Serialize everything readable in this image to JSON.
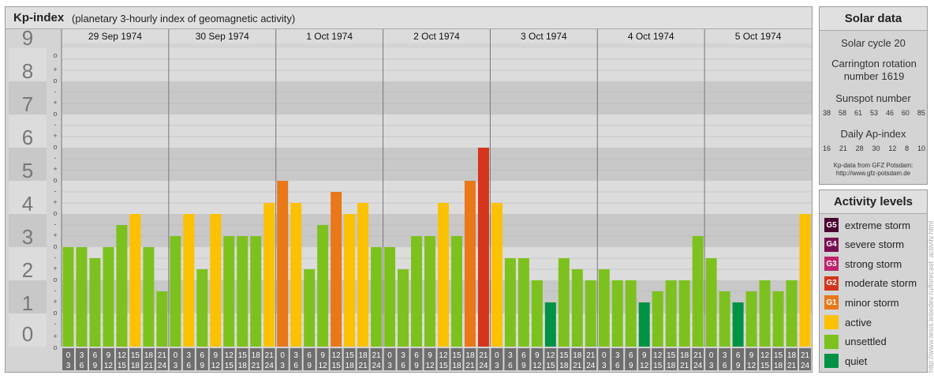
{
  "header": {
    "title": "Kp-index",
    "subtitle": "(planetary 3-hourly index of geomagnetic activity)"
  },
  "chart_data": {
    "type": "bar",
    "ylim": [
      0,
      9
    ],
    "y_ticks": [
      "0",
      "1",
      "2",
      "3",
      "4",
      "5",
      "6",
      "7",
      "8",
      "9"
    ],
    "sub_ticks": [
      "+",
      "o",
      "-"
    ],
    "days": [
      "29 Sep 1974",
      "30 Sep 1974",
      "1 Oct 1974",
      "2 Oct 1974",
      "3 Oct 1974",
      "4 Oct 1974",
      "5 Oct 1974"
    ],
    "hour_starts": [
      "0",
      "3",
      "6",
      "9",
      "12",
      "15",
      "18",
      "21"
    ],
    "hour_ends": [
      "3",
      "6",
      "9",
      "12",
      "15",
      "18",
      "21",
      "24"
    ],
    "values": [
      [
        3.0,
        3.0,
        2.667,
        3.0,
        3.667,
        4.0,
        3.0,
        1.667
      ],
      [
        3.333,
        4.0,
        2.333,
        4.0,
        3.333,
        3.333,
        3.333,
        4.333
      ],
      [
        5.0,
        4.333,
        2.333,
        3.667,
        4.667,
        4.0,
        4.333,
        3.0
      ],
      [
        3.0,
        2.333,
        3.333,
        3.333,
        4.333,
        3.333,
        5.0,
        6.0
      ],
      [
        4.333,
        2.667,
        2.667,
        2.0,
        1.333,
        2.667,
        2.333,
        2.0
      ],
      [
        2.333,
        2.0,
        2.0,
        1.333,
        1.667,
        2.0,
        2.0,
        3.333
      ],
      [
        2.667,
        1.667,
        1.333,
        1.667,
        2.0,
        1.667,
        2.0,
        4.0
      ]
    ],
    "colors": {
      "quiet": "#009245",
      "unsettled": "#7dc11e",
      "active": "#fcc100",
      "minor": "#e87818",
      "moderate": "#d4351c",
      "strong": "#c0236c",
      "severe": "#7a1054",
      "extreme": "#4a0030"
    }
  },
  "solar": {
    "heading": "Solar data",
    "cycle": "Solar cycle 20",
    "carrington": "Carrington rotation number 1619",
    "sunspot_label": "Sunspot number",
    "sunspot_values": [
      "38",
      "58",
      "61",
      "53",
      "46",
      "60",
      "85"
    ],
    "ap_label": "Daily Ap-index",
    "ap_values": [
      "16",
      "21",
      "28",
      "30",
      "12",
      "8",
      "10"
    ],
    "source_line1": "Kp-data from GFZ Potsdam:",
    "source_line2": "http://www.gfz-potsdam.de"
  },
  "activity": {
    "heading": "Activity levels",
    "items": [
      {
        "code": "G5",
        "label": "extreme storm",
        "color": "#4a0030"
      },
      {
        "code": "G4",
        "label": "severe storm",
        "color": "#7a1054"
      },
      {
        "code": "G3",
        "label": "strong storm",
        "color": "#c0236c"
      },
      {
        "code": "G2",
        "label": "moderate storm",
        "color": "#d4351c"
      },
      {
        "code": "G1",
        "label": "minor storm",
        "color": "#e87818"
      },
      {
        "code": "",
        "label": "active",
        "color": "#fcc100"
      },
      {
        "code": "",
        "label": "unsettled",
        "color": "#7dc11e"
      },
      {
        "code": "",
        "label": "quiet",
        "color": "#009245"
      }
    ]
  },
  "watermark": "http://www.tesis.lebedev.ru/forecast_activity.html"
}
